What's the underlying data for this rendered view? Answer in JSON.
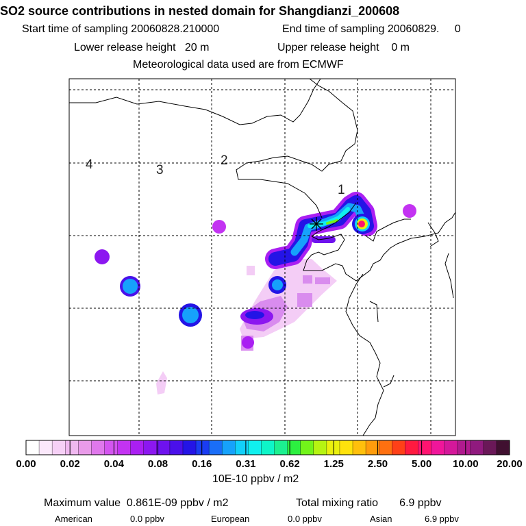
{
  "header": {
    "title": "SO2 source contributions in nested domain for Shangdianzi_200608",
    "start_sampling": "Start time of sampling 20060828.210000",
    "end_sampling": "End time of sampling 20060829.     0",
    "lower_release": "Lower release height   20 m",
    "upper_release": "Upper release height    0 m",
    "meteo": "Meteorological data used are from ECMWF"
  },
  "chart_data": {
    "type": "heatmap",
    "title": "SO2 source contributions in nested domain for Shangdianzi_200608",
    "grid": true,
    "region_labels": [
      "1",
      "2",
      "3",
      "4"
    ],
    "receptor_marker": "star",
    "colorbar": {
      "units": "10E-10 ppbv / m2",
      "tick_labels": [
        "0.00",
        "0.02",
        "0.04",
        "0.08",
        "0.16",
        "0.31",
        "0.62",
        "1.25",
        "2.50",
        "5.00",
        "10.00",
        "20.00"
      ],
      "colors": [
        "#ffffff",
        "#fbe8fb",
        "#f6d0f6",
        "#f0b8f0",
        "#e99be9",
        "#e078ec",
        "#d455f0",
        "#c333f2",
        "#aa1ff2",
        "#8c17f0",
        "#6e12ee",
        "#4a10ea",
        "#2414e6",
        "#1a3cf2",
        "#1a6ef8",
        "#16a2fb",
        "#12d0fa",
        "#10f0ee",
        "#0ef5c8",
        "#1cf090",
        "#2cf040",
        "#72f41a",
        "#b6f412",
        "#eaf00e",
        "#ffe20c",
        "#ffc00c",
        "#ff9c0c",
        "#ff7010",
        "#ff4018",
        "#ff1a40",
        "#ff1470",
        "#f0169a",
        "#d4189a",
        "#b01a8e",
        "#901a7e",
        "#6a1858",
        "#401030"
      ]
    },
    "statistics": {
      "maximum_label": "Maximum value  0.861E-09 ppbv / m2",
      "total_label": "Total mixing ratio       6.9 ppbv",
      "american_label": "American",
      "american_value": "0.0 ppbv",
      "european_label": "European",
      "european_value": "0.0 ppbv",
      "asian_label": "Asian",
      "asian_value": "6.9 ppbv"
    }
  }
}
